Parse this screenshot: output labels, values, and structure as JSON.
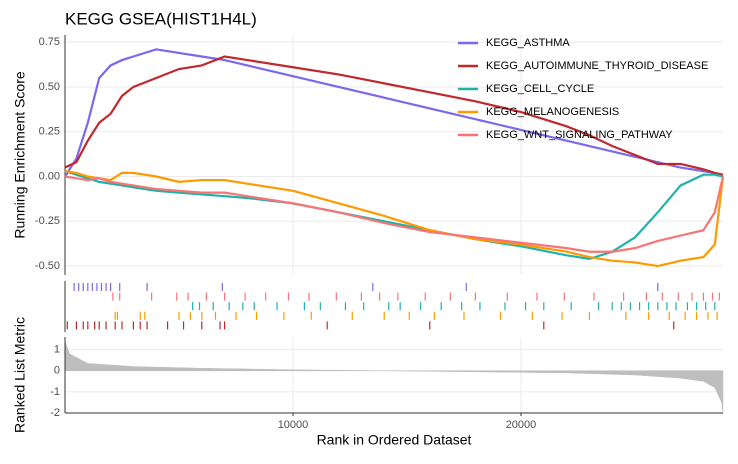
{
  "chart_data": [
    {
      "type": "line",
      "title": "KEGG GSEA(HIST1H4L)",
      "ylabel": "Running Enrichment Score",
      "xlim": [
        0,
        28860
      ],
      "ylim": [
        -0.55,
        0.79
      ],
      "yticks": [
        {
          "value": 0.75,
          "label": "0.75"
        },
        {
          "value": 0.5,
          "label": "0.50"
        },
        {
          "value": 0.25,
          "label": "0.25"
        },
        {
          "value": 0,
          "label": "0.00"
        },
        {
          "value": -0.25,
          "label": "-0.25"
        },
        {
          "value": -0.5,
          "label": "-0.50"
        }
      ],
      "grid": true,
      "x": [
        0,
        500,
        1000,
        1500,
        2000,
        2500,
        3000,
        4000,
        5000,
        6000,
        7000,
        8000,
        10000,
        12000,
        14000,
        16000,
        18000,
        20000,
        22000,
        23000,
        24000,
        25000,
        26000,
        27000,
        28000,
        28500,
        28860
      ],
      "series": [
        {
          "name": "KEGG_ASTHMA",
          "color": "#7b68ee",
          "values": [
            0,
            0.1,
            0.3,
            0.55,
            0.62,
            0.65,
            0.67,
            0.71,
            0.69,
            0.67,
            0.65,
            0.62,
            0.56,
            0.5,
            0.44,
            0.38,
            0.32,
            0.26,
            0.2,
            0.17,
            0.14,
            0.11,
            0.08,
            0.05,
            0.03,
            0.02,
            0
          ],
          "hits": [
            400,
            600,
            800,
            1000,
            1200,
            1400,
            1600,
            1800,
            2000,
            2400,
            3600,
            6900,
            13500,
            17600,
            26000
          ]
        },
        {
          "name": "KEGG_AUTOIMMUNE_THYROID_DISEASE",
          "color": "#c0282c",
          "values": [
            0.05,
            0.08,
            0.2,
            0.3,
            0.35,
            0.45,
            0.5,
            0.55,
            0.6,
            0.62,
            0.67,
            0.65,
            0.61,
            0.57,
            0.52,
            0.47,
            0.42,
            0.36,
            0.28,
            0.23,
            0.17,
            0.12,
            0.07,
            0.07,
            0.04,
            0.02,
            0.01
          ],
          "hits": [
            100,
            500,
            800,
            1000,
            1300,
            1500,
            1800,
            2200,
            2500,
            3000,
            3300,
            3600,
            4500,
            5200,
            6000,
            6800,
            7000,
            11500,
            16000,
            21000,
            26700
          ]
        },
        {
          "name": "KEGG_CELL_CYCLE",
          "color": "#20b2aa",
          "values": [
            0.03,
            0.01,
            -0.01,
            -0.03,
            -0.04,
            -0.05,
            -0.06,
            -0.08,
            -0.09,
            -0.1,
            -0.11,
            -0.12,
            -0.15,
            -0.2,
            -0.25,
            -0.3,
            -0.35,
            -0.39,
            -0.44,
            -0.46,
            -0.42,
            -0.34,
            -0.2,
            -0.05,
            0.01,
            0.01,
            0
          ],
          "hits": [
            5600,
            5900,
            6500,
            7200,
            7800,
            8300,
            9300,
            10500,
            11200,
            12300,
            13100,
            14200,
            14700,
            15600,
            16500,
            17400,
            18200,
            19300,
            20200,
            21000,
            22200,
            23400,
            24000,
            24400,
            24800,
            25200,
            25600,
            26000,
            26400,
            26800,
            27300,
            27700,
            28100,
            28500
          ]
        },
        {
          "name": "KEGG_MELANOGENESIS",
          "color": "#ff9900",
          "values": [
            0.03,
            0.02,
            0,
            -0.01,
            -0.02,
            0.02,
            0.02,
            0,
            -0.03,
            -0.02,
            -0.02,
            -0.04,
            -0.08,
            -0.15,
            -0.22,
            -0.3,
            -0.35,
            -0.38,
            -0.42,
            -0.45,
            -0.47,
            -0.48,
            -0.5,
            -0.47,
            -0.45,
            -0.38,
            0
          ],
          "hits": [
            2200,
            2300,
            3300,
            3500,
            5000,
            5500,
            6000,
            6600,
            7500,
            8400,
            9600,
            10800,
            12600,
            14000,
            15100,
            16200,
            17500,
            19100,
            20500,
            21800,
            23000,
            24600,
            25600,
            26500,
            27200,
            27700,
            28200,
            28600
          ]
        },
        {
          "name": "KEGG_WNT_SIGNALING_PATHWAY",
          "color": "#f87575",
          "values": [
            0,
            -0.01,
            -0.02,
            -0.01,
            -0.03,
            -0.04,
            -0.05,
            -0.07,
            -0.08,
            -0.09,
            -0.09,
            -0.11,
            -0.15,
            -0.2,
            -0.26,
            -0.31,
            -0.34,
            -0.37,
            -0.4,
            -0.42,
            -0.42,
            -0.4,
            -0.36,
            -0.33,
            -0.3,
            -0.2,
            0
          ],
          "hits": [
            2100,
            2400,
            3800,
            4900,
            5400,
            6200,
            7000,
            7900,
            8800,
            9800,
            10700,
            11900,
            13000,
            13800,
            14600,
            15800,
            16900,
            18000,
            19400,
            20700,
            21900,
            23200,
            24500,
            25500,
            26200,
            26900,
            27500,
            28000,
            28400,
            28700
          ]
        }
      ]
    },
    {
      "type": "area",
      "ylabel": "Ranked List Metric",
      "xlabel": "Rank in Ordered Dataset",
      "color": "#bebebe",
      "xlim": [
        0,
        28860
      ],
      "ylim": [
        -2,
        1.6
      ],
      "xticks": [
        10000,
        20000
      ],
      "yticks": [
        1,
        0,
        -1,
        -2
      ],
      "x": [
        0,
        200,
        1000,
        3000,
        6000,
        10000,
        14000,
        18000,
        22000,
        25000,
        27000,
        28000,
        28500,
        28800,
        28860
      ],
      "values": [
        1.4,
        0.8,
        0.35,
        0.2,
        0.12,
        0.05,
        0,
        -0.05,
        -0.1,
        -0.2,
        -0.35,
        -0.5,
        -0.8,
        -1.5,
        -2
      ]
    }
  ]
}
